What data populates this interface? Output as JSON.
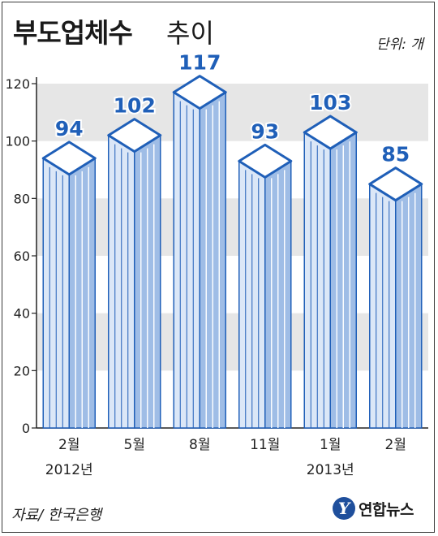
{
  "header": {
    "title": "부도업체수",
    "title_suffix": "추이",
    "unit": "단위: 개"
  },
  "footer": {
    "source": "자료/ 한국은행",
    "logo_text": "연합뉴스",
    "logo_mark": "Y"
  },
  "colors": {
    "bar_stroke": "#1f5fb8",
    "bar_face_light": "#dbe7f7",
    "bar_face_shade": "#9fbde6",
    "band": "#e6e6e6",
    "value_label": "#1f5fb8"
  },
  "chart_data": {
    "type": "bar",
    "title": "부도업체수 추이",
    "unit": "단위: 개",
    "categories": [
      "2월",
      "5월",
      "8월",
      "11월",
      "1월",
      "2월"
    ],
    "year_labels": [
      {
        "index": 0,
        "label": "2012년"
      },
      {
        "index": 4,
        "label": "2013년"
      }
    ],
    "values": [
      94,
      102,
      117,
      93,
      103,
      85
    ],
    "ylim": [
      0,
      120
    ],
    "yticks": [
      0,
      20,
      40,
      60,
      80,
      100,
      120
    ],
    "grid": "alternating horizontal bands",
    "legend": "none",
    "source": "자료/ 한국은행"
  }
}
